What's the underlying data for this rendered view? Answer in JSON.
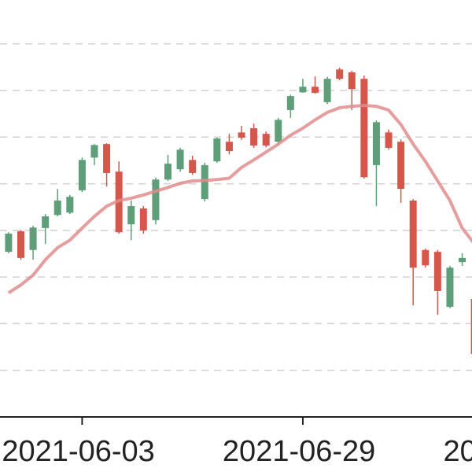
{
  "chart_data": {
    "type": "candlestick",
    "xlim": [
      -0.7,
      37.8
    ],
    "xticks": [
      {
        "value": 6,
        "label": "2021-06-03"
      },
      {
        "value": 24,
        "label": "2021-06-29"
      },
      {
        "value": 42,
        "label": "20"
      }
    ],
    "ylim": [
      0,
      8.94
    ],
    "grid_lines": [
      1,
      2,
      3,
      4,
      5,
      6,
      7,
      8
    ],
    "up_color": "#5e9e78",
    "down_color": "#d5574b",
    "open": [
      3.54,
      3.98,
      3.58,
      4.05,
      4.33,
      4.38,
      4.86,
      5.56,
      5.85,
      5.26,
      4.13,
      4.47,
      4.22,
      5.09,
      5.31,
      5.51,
      4.67,
      5.48,
      5.9,
      6.1,
      6.19,
      6.07,
      5.9,
      6.58,
      6.96,
      7.08,
      6.75,
      7.45,
      7.39,
      7.25,
      5.4,
      6.1,
      5.9,
      4.64,
      3.58,
      3.54,
      2.36,
      3.32,
      2.53
    ],
    "high": [
      3.96,
      4.01,
      4.1,
      4.35,
      4.89,
      4.76,
      5.56,
      5.85,
      5.87,
      5.48,
      4.64,
      4.52,
      5.13,
      5.62,
      5.77,
      5.6,
      5.45,
      5.99,
      6.07,
      6.24,
      6.29,
      6.12,
      6.41,
      6.91,
      7.25,
      7.3,
      7.29,
      7.49,
      7.42,
      7.32,
      6.36,
      6.16,
      5.95,
      4.67,
      3.61,
      3.58,
      3.24,
      3.51,
      2.61
    ],
    "low": [
      3.51,
      3.37,
      3.37,
      3.71,
      4.3,
      4.35,
      4.82,
      5.4,
      4.94,
      3.93,
      3.79,
      3.93,
      4.13,
      5.06,
      5.26,
      5.19,
      4.62,
      5.45,
      5.63,
      5.94,
      5.77,
      5.78,
      5.82,
      6.41,
      6.95,
      6.93,
      6.71,
      7.22,
      6.58,
      5.11,
      4.52,
      5.73,
      4.59,
      2.39,
      3.2,
      2.19,
      2.33,
      3.24,
      1.26
    ],
    "close": [
      3.93,
      3.41,
      4.06,
      4.3,
      4.64,
      4.72,
      5.51,
      5.83,
      5.23,
      3.96,
      4.52,
      4.0,
      5.09,
      5.43,
      5.73,
      5.23,
      5.4,
      5.97,
      5.7,
      5.99,
      5.82,
      5.82,
      6.37,
      6.88,
      7.08,
      6.95,
      7.25,
      7.25,
      7.03,
      5.14,
      6.32,
      5.77,
      4.89,
      3.2,
      3.25,
      2.7,
      3.2,
      3.41,
      1.35
    ],
    "moving_average": {
      "color": "#e08c8c",
      "values": [
        2.66,
        2.83,
        3.04,
        3.37,
        3.63,
        3.79,
        4.05,
        4.3,
        4.52,
        4.64,
        4.69,
        4.76,
        4.84,
        4.92,
        5.01,
        5.06,
        5.07,
        5.09,
        5.12,
        5.35,
        5.51,
        5.68,
        5.85,
        6.04,
        6.19,
        6.37,
        6.53,
        6.63,
        6.66,
        6.68,
        6.66,
        6.58,
        6.27,
        5.85,
        5.48,
        5.06,
        4.64,
        4.05,
        3.71
      ]
    }
  }
}
